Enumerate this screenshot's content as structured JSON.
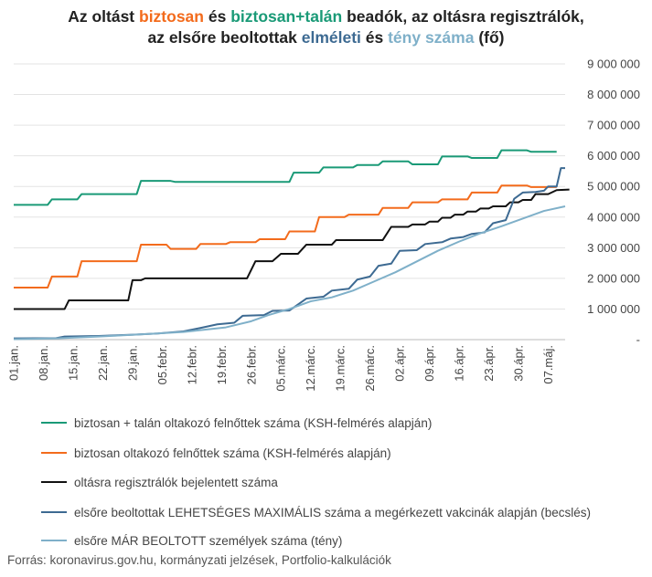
{
  "title": {
    "line1_a": "Az oltást ",
    "line1_b": "biztosan",
    "line1_c": " és ",
    "line1_d": "biztosan+talán",
    "line1_e": " beadók, az oltásra regisztrálók,",
    "line2_a": "az elsőre beoltottak ",
    "line2_b": "elméleti",
    "line2_c": " és ",
    "line2_d": "tény száma",
    "line2_e": " (fő)"
  },
  "source": "Forrás: koronavirus.gov.hu, kormányzati jelzések, Portfolio-kalkulációk",
  "chart_data": {
    "type": "line",
    "ylim": [
      0,
      9000000
    ],
    "y_ticks": [
      {
        "value": 0,
        "label": "-"
      },
      {
        "value": 1000000,
        "label": "1 000 000"
      },
      {
        "value": 2000000,
        "label": "2 000 000"
      },
      {
        "value": 3000000,
        "label": "3 000 000"
      },
      {
        "value": 4000000,
        "label": "4 000 000"
      },
      {
        "value": 5000000,
        "label": "5 000 000"
      },
      {
        "value": 6000000,
        "label": "6 000 000"
      },
      {
        "value": 7000000,
        "label": "7 000 000"
      },
      {
        "value": 8000000,
        "label": "8 000 000"
      },
      {
        "value": 9000000,
        "label": "9 000 000"
      }
    ],
    "x_domain": [
      0,
      130
    ],
    "x_ticks": [
      {
        "day": 0,
        "label": "01.jan."
      },
      {
        "day": 7,
        "label": "08.jan."
      },
      {
        "day": 14,
        "label": "15.jan."
      },
      {
        "day": 21,
        "label": "22.jan."
      },
      {
        "day": 28,
        "label": "29.jan."
      },
      {
        "day": 35,
        "label": "05.febr."
      },
      {
        "day": 42,
        "label": "12.febr."
      },
      {
        "day": 49,
        "label": "19.febr."
      },
      {
        "day": 56,
        "label": "26.febr."
      },
      {
        "day": 63,
        "label": "05.márc."
      },
      {
        "day": 70,
        "label": "12.márc."
      },
      {
        "day": 77,
        "label": "19.márc."
      },
      {
        "day": 84,
        "label": "26.márc."
      },
      {
        "day": 91,
        "label": "02.ápr."
      },
      {
        "day": 98,
        "label": "09.ápr."
      },
      {
        "day": 105,
        "label": "16.ápr."
      },
      {
        "day": 112,
        "label": "23.ápr."
      },
      {
        "day": 119,
        "label": "30.ápr."
      },
      {
        "day": 126,
        "label": "07.máj."
      }
    ],
    "grid": "horizontal",
    "legend_position": "bottom",
    "series": [
      {
        "name": "biztosan + talán oltakozó felnőttek száma (KSH-felmérés alapján)",
        "color": "#1a9a77",
        "points": [
          [
            0,
            4400000
          ],
          [
            8,
            4400000
          ],
          [
            9,
            4580000
          ],
          [
            15,
            4580000
          ],
          [
            16,
            4750000
          ],
          [
            29,
            4750000
          ],
          [
            30,
            5180000
          ],
          [
            37,
            5180000
          ],
          [
            38,
            5150000
          ],
          [
            65,
            5150000
          ],
          [
            66,
            5450000
          ],
          [
            72,
            5450000
          ],
          [
            73,
            5620000
          ],
          [
            80,
            5620000
          ],
          [
            81,
            5700000
          ],
          [
            86,
            5700000
          ],
          [
            87,
            5820000
          ],
          [
            93,
            5820000
          ],
          [
            94,
            5720000
          ],
          [
            100,
            5720000
          ],
          [
            101,
            5980000
          ],
          [
            107,
            5980000
          ],
          [
            108,
            5930000
          ],
          [
            114,
            5930000
          ],
          [
            115,
            6180000
          ],
          [
            121,
            6180000
          ],
          [
            122,
            6130000
          ],
          [
            128,
            6130000
          ]
        ]
      },
      {
        "name": "biztosan oltakozó felnőttek száma (KSH-felmérés alapján)",
        "color": "#f36b1c",
        "points": [
          [
            0,
            1700000
          ],
          [
            8,
            1700000
          ],
          [
            9,
            2060000
          ],
          [
            15,
            2060000
          ],
          [
            16,
            2560000
          ],
          [
            29,
            2560000
          ],
          [
            30,
            3100000
          ],
          [
            36,
            3100000
          ],
          [
            37,
            2960000
          ],
          [
            43,
            2960000
          ],
          [
            44,
            3120000
          ],
          [
            50,
            3120000
          ],
          [
            51,
            3180000
          ],
          [
            57,
            3180000
          ],
          [
            58,
            3280000
          ],
          [
            64,
            3280000
          ],
          [
            65,
            3530000
          ],
          [
            71,
            3530000
          ],
          [
            72,
            4000000
          ],
          [
            78,
            4000000
          ],
          [
            79,
            4080000
          ],
          [
            86,
            4080000
          ],
          [
            87,
            4300000
          ],
          [
            93,
            4300000
          ],
          [
            94,
            4480000
          ],
          [
            100,
            4480000
          ],
          [
            101,
            4580000
          ],
          [
            107,
            4580000
          ],
          [
            108,
            4800000
          ],
          [
            114,
            4800000
          ],
          [
            115,
            5030000
          ],
          [
            121,
            5030000
          ],
          [
            122,
            4980000
          ],
          [
            128,
            4980000
          ]
        ]
      },
      {
        "name": "oltásra regisztrálók bejelentett száma",
        "color": "#111111",
        "points": [
          [
            0,
            1000000
          ],
          [
            12,
            1000000
          ],
          [
            13,
            1280000
          ],
          [
            27,
            1280000
          ],
          [
            28,
            1940000
          ],
          [
            30,
            1940000
          ],
          [
            31,
            2000000
          ],
          [
            55,
            2000000
          ],
          [
            57,
            2560000
          ],
          [
            61,
            2560000
          ],
          [
            63,
            2800000
          ],
          [
            67,
            2800000
          ],
          [
            69,
            3100000
          ],
          [
            75,
            3100000
          ],
          [
            76,
            3250000
          ],
          [
            87,
            3250000
          ],
          [
            89,
            3680000
          ],
          [
            93,
            3680000
          ],
          [
            94,
            3760000
          ],
          [
            97,
            3760000
          ],
          [
            98,
            3850000
          ],
          [
            100,
            3850000
          ],
          [
            101,
            3980000
          ],
          [
            103,
            3980000
          ],
          [
            104,
            4080000
          ],
          [
            106,
            4080000
          ],
          [
            107,
            4180000
          ],
          [
            109,
            4180000
          ],
          [
            110,
            4280000
          ],
          [
            112,
            4280000
          ],
          [
            113,
            4350000
          ],
          [
            116,
            4350000
          ],
          [
            117,
            4480000
          ],
          [
            119,
            4480000
          ],
          [
            120,
            4560000
          ],
          [
            122,
            4560000
          ],
          [
            123,
            4750000
          ],
          [
            126,
            4750000
          ],
          [
            128,
            4880000
          ],
          [
            131,
            4900000
          ]
        ]
      },
      {
        "name": "elsőre beoltottak LEHETSÉGES MAXIMÁLIS száma a megérkezett vakcinák alapján (becslés)",
        "color": "#3d6a92",
        "points": [
          [
            0,
            40000
          ],
          [
            10,
            50000
          ],
          [
            12,
            100000
          ],
          [
            20,
            120000
          ],
          [
            28,
            160000
          ],
          [
            34,
            200000
          ],
          [
            40,
            270000
          ],
          [
            44,
            380000
          ],
          [
            48,
            500000
          ],
          [
            52,
            550000
          ],
          [
            54,
            780000
          ],
          [
            59,
            800000
          ],
          [
            61,
            940000
          ],
          [
            65,
            950000
          ],
          [
            69,
            1340000
          ],
          [
            73,
            1400000
          ],
          [
            75,
            1600000
          ],
          [
            79,
            1660000
          ],
          [
            81,
            1960000
          ],
          [
            84,
            2060000
          ],
          [
            86,
            2410000
          ],
          [
            89,
            2480000
          ],
          [
            91,
            2900000
          ],
          [
            95,
            2920000
          ],
          [
            97,
            3120000
          ],
          [
            101,
            3180000
          ],
          [
            103,
            3300000
          ],
          [
            106,
            3350000
          ],
          [
            108,
            3450000
          ],
          [
            111,
            3500000
          ],
          [
            113,
            3800000
          ],
          [
            116,
            3900000
          ],
          [
            118,
            4600000
          ],
          [
            120,
            4800000
          ],
          [
            123,
            4820000
          ],
          [
            125,
            4860000
          ],
          [
            126,
            5000000
          ],
          [
            128,
            5000000
          ],
          [
            129,
            5600000
          ],
          [
            130,
            5600000
          ]
        ]
      },
      {
        "name": "elsőre MÁR BEOLTOTT személyek száma (tény)",
        "color": "#7fb0c9",
        "points": [
          [
            0,
            15000
          ],
          [
            10,
            40000
          ],
          [
            20,
            100000
          ],
          [
            30,
            170000
          ],
          [
            40,
            250000
          ],
          [
            50,
            400000
          ],
          [
            56,
            600000
          ],
          [
            60,
            800000
          ],
          [
            65,
            1000000
          ],
          [
            70,
            1250000
          ],
          [
            75,
            1380000
          ],
          [
            80,
            1600000
          ],
          [
            85,
            1900000
          ],
          [
            90,
            2200000
          ],
          [
            95,
            2550000
          ],
          [
            100,
            2900000
          ],
          [
            105,
            3200000
          ],
          [
            110,
            3470000
          ],
          [
            115,
            3700000
          ],
          [
            120,
            3950000
          ],
          [
            125,
            4200000
          ],
          [
            130,
            4350000
          ]
        ]
      }
    ]
  }
}
